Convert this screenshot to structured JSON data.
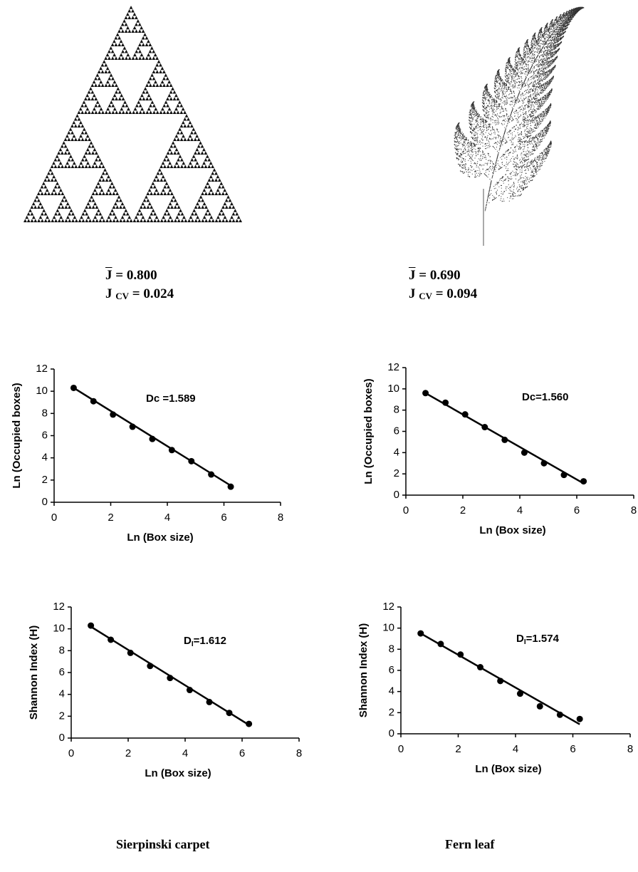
{
  "columns": [
    {
      "name": "Sierpinski carpet",
      "j_bar": {
        "symbol": "J",
        "text": " = 0.800"
      },
      "j_cv": {
        "symbol": "J",
        "subscript": "CV",
        "text": " = 0.024"
      }
    },
    {
      "name": "Fern leaf",
      "j_bar": {
        "symbol": "J",
        "text": " = 0.690"
      },
      "j_cv": {
        "symbol": "J",
        "subscript": "CV",
        "text": " = 0.094"
      }
    }
  ],
  "chart_data": [
    {
      "type": "scatter",
      "xlabel": "Ln (Box size)",
      "ylabel": "Ln (Occupied boxes)",
      "annotation": {
        "text": "Dc =1.589"
      },
      "x": [
        0.69,
        1.39,
        2.08,
        2.77,
        3.47,
        4.16,
        4.85,
        5.55,
        6.24
      ],
      "values": [
        10.3,
        9.1,
        7.9,
        6.8,
        5.7,
        4.7,
        3.7,
        2.5,
        1.4
      ],
      "fit_line": {
        "x": [
          0.69,
          6.24
        ],
        "y": [
          10.3,
          1.5
        ]
      },
      "color": "#000000",
      "xlim": [
        0,
        8
      ],
      "xticks": [
        0,
        2,
        4,
        6,
        8
      ],
      "ylim": [
        0,
        12
      ],
      "yticks": [
        0,
        2,
        4,
        6,
        8,
        10,
        12
      ]
    },
    {
      "type": "scatter",
      "xlabel": "Ln (Box size)",
      "ylabel": "Ln (Occupied boxes)",
      "annotation": {
        "text": "Dc=1.560"
      },
      "x": [
        0.69,
        1.39,
        2.08,
        2.77,
        3.47,
        4.16,
        4.85,
        5.55,
        6.24
      ],
      "values": [
        9.6,
        8.7,
        7.6,
        6.4,
        5.2,
        4.0,
        3.0,
        1.9,
        1.3
      ],
      "fit_line": {
        "x": [
          0.69,
          6.24
        ],
        "y": [
          9.6,
          1.1
        ]
      },
      "color": "#000000",
      "xlim": [
        0,
        8
      ],
      "xticks": [
        0,
        2,
        4,
        6,
        8
      ],
      "ylim": [
        0,
        12
      ],
      "yticks": [
        0,
        2,
        4,
        6,
        8,
        10,
        12
      ]
    },
    {
      "type": "scatter",
      "xlabel": "Ln (Box size)",
      "ylabel": "Shannon Index (H)",
      "annotation": {
        "symbol": "D",
        "subscript": "I",
        "text": "=1.612"
      },
      "x": [
        0.69,
        1.39,
        2.08,
        2.77,
        3.47,
        4.16,
        4.85,
        5.55,
        6.24
      ],
      "values": [
        10.3,
        9.0,
        7.8,
        6.6,
        5.5,
        4.4,
        3.3,
        2.3,
        1.3
      ],
      "fit_line": {
        "x": [
          0.69,
          6.24
        ],
        "y": [
          10.2,
          1.2
        ]
      },
      "color": "#000000",
      "xlim": [
        0,
        8
      ],
      "xticks": [
        0,
        2,
        4,
        6,
        8
      ],
      "ylim": [
        0,
        12
      ],
      "yticks": [
        0,
        2,
        4,
        6,
        8,
        10,
        12
      ]
    },
    {
      "type": "scatter",
      "xlabel": "Ln (Box size)",
      "ylabel": "Shannon Index (H)",
      "annotation": {
        "symbol": "D",
        "subscript": "I",
        "text": "=1.574"
      },
      "x": [
        0.69,
        1.39,
        2.08,
        2.77,
        3.47,
        4.16,
        4.85,
        5.55,
        6.24
      ],
      "values": [
        9.5,
        8.5,
        7.5,
        6.3,
        5.0,
        3.8,
        2.6,
        1.8,
        1.4
      ],
      "fit_line": {
        "x": [
          0.69,
          6.24
        ],
        "y": [
          9.5,
          0.9
        ]
      },
      "color": "#000000",
      "xlim": [
        0,
        8
      ],
      "xticks": [
        0,
        2,
        4,
        6,
        8
      ],
      "ylim": [
        0,
        12
      ],
      "yticks": [
        0,
        2,
        4,
        6,
        8,
        10,
        12
      ]
    }
  ]
}
